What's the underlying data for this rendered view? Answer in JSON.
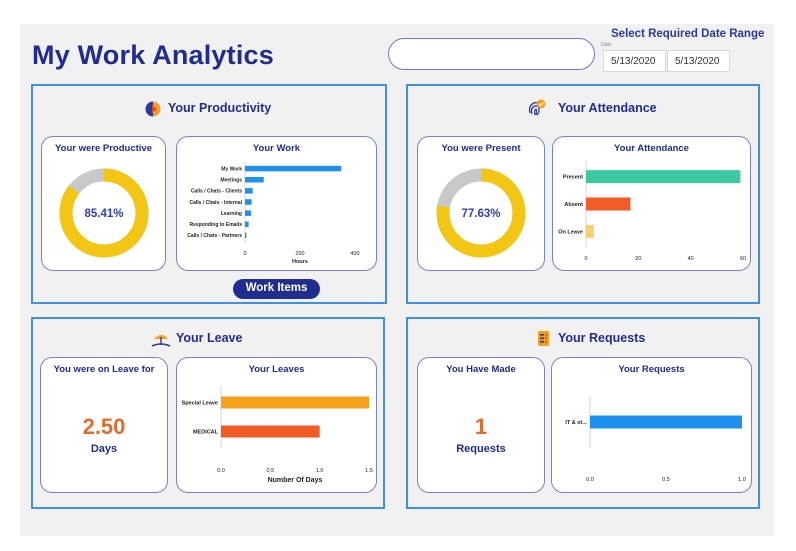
{
  "header": {
    "title": "My Work Analytics",
    "date_range_title": "Select Required Date Range",
    "date_label": "Date",
    "start_date": "5/13/2020",
    "end_date": "5/13/2020"
  },
  "productivity": {
    "title": "Your Productivity",
    "gauge_title": "Your were Productive",
    "gauge_value_label": "85.41%",
    "gauge_fraction": 0.8541,
    "chart_title": "Your Work",
    "button_label": "Work Items"
  },
  "attendance": {
    "title": "Your Attendance",
    "gauge_title": "You were Present",
    "gauge_value_label": "77.63%",
    "gauge_fraction": 0.7763,
    "chart_title": "Your Attendance"
  },
  "leave": {
    "title": "Your Leave",
    "stat_title": "You were on Leave for",
    "stat_value": "2.50",
    "stat_unit": "Days",
    "chart_title": "Your Leaves"
  },
  "requests": {
    "title": "Your Requests",
    "stat_title": "You Have Made",
    "stat_value": "1",
    "stat_unit": "Requests",
    "chart_title": "Your Requests"
  },
  "colors": {
    "gauge_fill": "#f3c613",
    "gauge_rest": "#c8c8c8",
    "work_bar": "#1e90ef",
    "present": "#3cc9a2",
    "absent": "#f05b26",
    "on_leave": "#f7d170",
    "special_leave": "#f5a11c",
    "medical": "#f05b26",
    "request_bar": "#1e90ef"
  },
  "chart_data": [
    {
      "type": "bar",
      "orientation": "horizontal",
      "title": "Your Work",
      "categories": [
        "My Work",
        "Meetings",
        "Calls / Chats - Clients",
        "Calls / Chats - Internal",
        "Learning",
        "Responding to Emails",
        "Calls / Chats - Partners"
      ],
      "values": [
        350,
        68,
        28,
        24,
        22,
        13,
        5
      ],
      "xlabel": "Hours",
      "xlim": [
        0,
        400
      ],
      "xticks": [
        "0",
        "200",
        "400"
      ],
      "grid": false
    },
    {
      "type": "bar",
      "orientation": "horizontal",
      "title": "Your Attendance",
      "categories": [
        "Present",
        "Absent",
        "On Leave"
      ],
      "values": [
        59,
        17,
        3
      ],
      "xlim": [
        0,
        60
      ],
      "xticks": [
        "0",
        "20",
        "40",
        "60"
      ],
      "grid": false
    },
    {
      "type": "bar",
      "orientation": "horizontal",
      "title": "Your Leaves",
      "categories": [
        "Special Leave",
        "MEDICAL"
      ],
      "values": [
        1.5,
        1.0
      ],
      "xlabel": "Number Of Days",
      "xlim": [
        0,
        1.5
      ],
      "xticks": [
        "0.0",
        "0.5",
        "1.0",
        "1.5"
      ],
      "grid": false
    },
    {
      "type": "bar",
      "orientation": "horizontal",
      "title": "Your Requests",
      "categories": [
        "IT & ot..."
      ],
      "values": [
        1.0
      ],
      "xlim": [
        0,
        1.0
      ],
      "xticks": [
        "0.0",
        "0.5",
        "1.0"
      ],
      "grid": false
    }
  ]
}
